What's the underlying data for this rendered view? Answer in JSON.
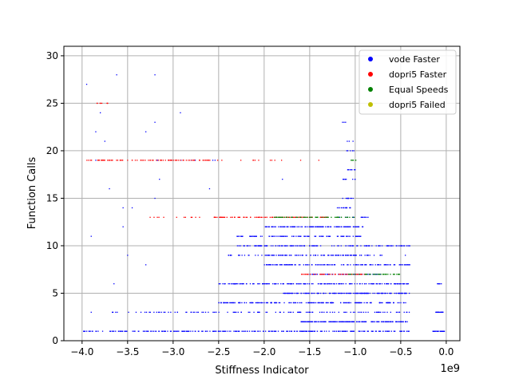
{
  "chart_data": {
    "type": "scatter",
    "title": "",
    "xlabel": "Stiffness Indicator",
    "ylabel": "Function Calls",
    "x_offset_label": "1e9",
    "xlim": [
      -4.2,
      0.15
    ],
    "ylim": [
      0,
      31
    ],
    "xticks": [
      -4.0,
      -3.5,
      -3.0,
      -2.5,
      -2.0,
      -1.5,
      -1.0,
      -0.5,
      0.0
    ],
    "xtick_labels": [
      "−4.0",
      "−3.5",
      "−3.0",
      "−2.5",
      "−2.0",
      "−1.5",
      "−1.0",
      "−0.5",
      "0.0"
    ],
    "yticks": [
      0,
      5,
      10,
      15,
      20,
      25,
      30
    ],
    "ytick_labels": [
      "0",
      "5",
      "10",
      "15",
      "20",
      "25",
      "30"
    ],
    "grid": true,
    "legend_position": "top-right",
    "series": [
      {
        "name": "vode Faster",
        "color": "#0000ff",
        "bands": [
          {
            "y": 1,
            "x": [
              -4.0,
              -0.4
            ],
            "n": 320
          },
          {
            "y": 1,
            "x": [
              -0.15,
              -0.02
            ],
            "n": 40
          },
          {
            "y": 2,
            "x": [
              -1.6,
              -0.4
            ],
            "n": 160
          },
          {
            "y": 3,
            "x": [
              -3.7,
              -0.4
            ],
            "n": 120
          },
          {
            "y": 3,
            "x": [
              -0.12,
              -0.03
            ],
            "n": 20
          },
          {
            "y": 4,
            "x": [
              -2.5,
              -0.4
            ],
            "n": 180
          },
          {
            "y": 5,
            "x": [
              -1.8,
              -0.4
            ],
            "n": 150
          },
          {
            "y": 6,
            "x": [
              -2.5,
              -0.35
            ],
            "n": 180
          },
          {
            "y": 6,
            "x": [
              -0.1,
              -0.05
            ],
            "n": 6
          },
          {
            "y": 7,
            "x": [
              -1.5,
              -0.7
            ],
            "n": 60
          },
          {
            "y": 8,
            "x": [
              -2.0,
              -0.4
            ],
            "n": 140
          },
          {
            "y": 9,
            "x": [
              -2.4,
              -0.7
            ],
            "n": 120
          },
          {
            "y": 10,
            "x": [
              -2.3,
              -0.4
            ],
            "n": 140
          },
          {
            "y": 11,
            "x": [
              -2.3,
              -0.9
            ],
            "n": 110
          },
          {
            "y": 12,
            "x": [
              -2.0,
              -0.9
            ],
            "n": 110
          },
          {
            "y": 13,
            "x": [
              -1.2,
              -0.85
            ],
            "n": 20
          },
          {
            "y": 14,
            "x": [
              -1.2,
              -1.0
            ],
            "n": 15
          },
          {
            "y": 15,
            "x": [
              -1.15,
              -1.0
            ],
            "n": 10
          },
          {
            "y": 17,
            "x": [
              -1.15,
              -1.0
            ],
            "n": 8
          },
          {
            "y": 18,
            "x": [
              -1.1,
              -1.0
            ],
            "n": 8
          },
          {
            "y": 19,
            "x": [
              -3.2,
              -2.5
            ],
            "n": 10
          },
          {
            "y": 20,
            "x": [
              -1.1,
              -1.0
            ],
            "n": 5
          },
          {
            "y": 21,
            "x": [
              -1.1,
              -1.0
            ],
            "n": 3
          },
          {
            "y": 23,
            "x": [
              -1.15,
              -1.1
            ],
            "n": 3
          }
        ],
        "extra_points": [
          [
            -3.95,
            27
          ],
          [
            -3.8,
            24
          ],
          [
            -3.75,
            21
          ],
          [
            -3.85,
            19
          ],
          [
            -3.62,
            28
          ],
          [
            -3.2,
            28
          ],
          [
            -3.2,
            23
          ],
          [
            -2.92,
            24
          ],
          [
            -3.65,
            6
          ],
          [
            -3.5,
            9
          ],
          [
            -3.9,
            11
          ],
          [
            -3.3,
            8
          ],
          [
            -3.55,
            14
          ],
          [
            -3.45,
            14
          ],
          [
            -3.7,
            16
          ],
          [
            -3.15,
            17
          ],
          [
            -3.85,
            22
          ],
          [
            -3.9,
            3
          ],
          [
            -3.55,
            12
          ],
          [
            -3.2,
            15
          ],
          [
            -0.4,
            10
          ],
          [
            -0.45,
            9
          ],
          [
            -3.3,
            22
          ],
          [
            -2.6,
            16
          ],
          [
            -1.8,
            17
          ]
        ]
      },
      {
        "name": "dopri5 Faster",
        "color": "#ff0000",
        "bands": [
          {
            "y": 19,
            "x": [
              -3.95,
              -2.45
            ],
            "n": 90
          },
          {
            "y": 19,
            "x": [
              -2.3,
              -1.8
            ],
            "n": 8
          },
          {
            "y": 25,
            "x": [
              -3.85,
              -3.7
            ],
            "n": 8
          },
          {
            "y": 13,
            "x": [
              -2.55,
              -1.3
            ],
            "n": 110
          },
          {
            "y": 13,
            "x": [
              -3.3,
              -2.7
            ],
            "n": 12
          },
          {
            "y": 7,
            "x": [
              -1.6,
              -0.9
            ],
            "n": 50
          }
        ],
        "extra_points": [
          [
            -2.1,
            19
          ],
          [
            -1.6,
            19
          ],
          [
            -1.4,
            19
          ]
        ]
      },
      {
        "name": "Equal Speeds",
        "color": "#008000",
        "bands": [
          {
            "y": 13,
            "x": [
              -1.9,
              -1.0
            ],
            "n": 60
          },
          {
            "y": 7,
            "x": [
              -1.1,
              -0.5
            ],
            "n": 40
          },
          {
            "y": 19,
            "x": [
              -1.05,
              -0.98
            ],
            "n": 6
          }
        ],
        "extra_points": []
      },
      {
        "name": "dopri5 Failed",
        "color": "#bfbf00",
        "bands": [],
        "extra_points": []
      }
    ]
  }
}
